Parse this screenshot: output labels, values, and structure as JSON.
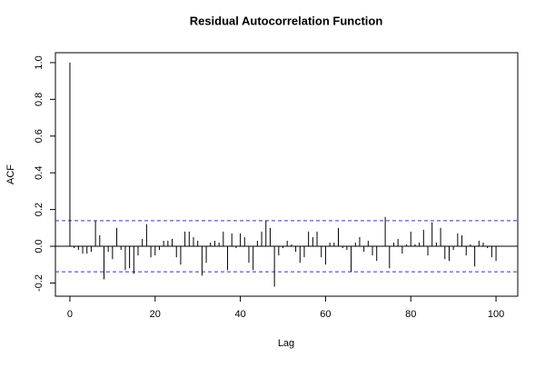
{
  "chart_data": {
    "type": "stem",
    "title": "Residual Autocorrelation Function",
    "x_label": "Lag",
    "y_label": "ACF",
    "x": [
      0,
      1,
      2,
      3,
      4,
      5,
      6,
      7,
      8,
      9,
      10,
      11,
      12,
      13,
      14,
      15,
      16,
      17,
      18,
      19,
      20,
      21,
      22,
      23,
      24,
      25,
      26,
      27,
      28,
      29,
      30,
      31,
      32,
      33,
      34,
      35,
      36,
      37,
      38,
      39,
      40,
      41,
      42,
      43,
      44,
      45,
      46,
      47,
      48,
      49,
      50,
      51,
      52,
      53,
      54,
      55,
      56,
      57,
      58,
      59,
      60,
      61,
      62,
      63,
      64,
      65,
      66,
      67,
      68,
      69,
      70,
      71,
      72,
      73,
      74,
      75,
      76,
      77,
      78,
      79,
      80,
      81,
      82,
      83,
      84,
      85,
      86,
      87,
      88,
      89,
      90,
      91,
      92,
      93,
      94,
      95,
      96,
      97,
      98,
      99,
      100
    ],
    "values": [
      1.0,
      -0.01,
      -0.02,
      -0.04,
      -0.04,
      -0.03,
      0.14,
      0.06,
      -0.18,
      -0.03,
      -0.07,
      0.1,
      -0.02,
      -0.13,
      -0.12,
      -0.15,
      -0.05,
      0.04,
      0.12,
      -0.06,
      -0.05,
      -0.02,
      0.03,
      0.03,
      0.04,
      -0.06,
      -0.1,
      0.08,
      0.08,
      0.05,
      0.03,
      -0.16,
      -0.09,
      0.02,
      0.03,
      0.02,
      0.08,
      -0.13,
      0.07,
      -0.01,
      0.07,
      0.05,
      -0.09,
      -0.13,
      0.03,
      0.08,
      0.14,
      0.1,
      -0.22,
      -0.05,
      -0.01,
      0.03,
      0.01,
      -0.03,
      -0.09,
      -0.06,
      0.08,
      0.05,
      0.08,
      -0.06,
      -0.1,
      0.02,
      0.02,
      0.1,
      -0.01,
      -0.02,
      -0.14,
      0.02,
      0.05,
      -0.03,
      0.03,
      -0.05,
      -0.08,
      0.0,
      0.16,
      -0.12,
      0.02,
      0.04,
      -0.04,
      0.01,
      0.08,
      0.01,
      0.02,
      0.09,
      -0.05,
      0.13,
      0.02,
      0.1,
      -0.07,
      -0.08,
      -0.02,
      0.07,
      0.06,
      -0.05,
      0.01,
      -0.11,
      0.03,
      0.02,
      -0.01,
      -0.06,
      -0.08
    ],
    "color": "#000000",
    "ci": [
      0.139,
      -0.139
    ],
    "ci_color": "#3333cc",
    "xlim": [
      -3.4,
      105.1
    ],
    "ylim": [
      -0.272,
      1.054
    ],
    "xticks": [
      0,
      20,
      40,
      60,
      80,
      100
    ],
    "yticks": [
      -0.2,
      {
        "value": 0,
        "label": "0.0"
      },
      0.2,
      0.4,
      0.6,
      0.8,
      {
        "value": 1,
        "label": "1.0"
      }
    ]
  }
}
